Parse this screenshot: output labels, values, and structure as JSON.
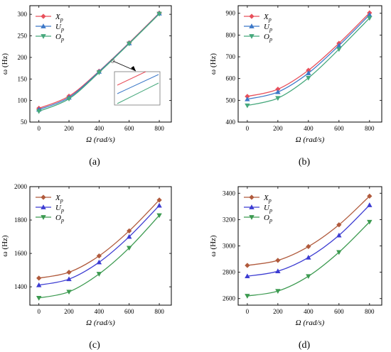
{
  "figure": {
    "panel_labels": [
      "(a)",
      "(b)",
      "(c)",
      "(d)"
    ]
  },
  "chart_data": [
    {
      "type": "line",
      "panel": "(a)",
      "xlabel": "Ω (rad/s)",
      "ylabel": "ω (Hz)",
      "x": [
        0,
        200,
        400,
        600,
        800
      ],
      "xticks": [
        0,
        200,
        400,
        600,
        800
      ],
      "yticks": [
        50,
        100,
        150,
        200,
        250,
        300
      ],
      "xlim": [
        -60,
        880
      ],
      "ylim": [
        50,
        320
      ],
      "legend": "top-left",
      "has_inset": true,
      "series": [
        {
          "name": "X",
          "sub": "p",
          "color": "#e8505b",
          "marker": "diamond",
          "values": [
            82,
            110,
            168,
            234,
            303
          ]
        },
        {
          "name": "U",
          "sub": "p",
          "color": "#3c78c8",
          "marker": "triangle-up",
          "values": [
            79,
            107,
            167,
            233,
            302
          ]
        },
        {
          "name": "O",
          "sub": "p",
          "color": "#46a87c",
          "marker": "triangle-down",
          "values": [
            75,
            104,
            165,
            232,
            301
          ]
        }
      ]
    },
    {
      "type": "line",
      "panel": "(b)",
      "xlabel": "Ω (rad/s)",
      "ylabel": "ω (Hz)",
      "x": [
        0,
        200,
        400,
        600,
        800
      ],
      "xticks": [
        0,
        200,
        400,
        600,
        800
      ],
      "yticks": [
        400,
        500,
        600,
        700,
        800,
        900
      ],
      "xlim": [
        -60,
        880
      ],
      "ylim": [
        400,
        935
      ],
      "legend": "top-left",
      "series": [
        {
          "name": "X",
          "sub": "p",
          "color": "#e8505b",
          "marker": "diamond",
          "values": [
            518,
            551,
            638,
            762,
            902
          ]
        },
        {
          "name": "U",
          "sub": "p",
          "color": "#3c78c8",
          "marker": "triangle-up",
          "values": [
            505,
            538,
            625,
            752,
            893
          ]
        },
        {
          "name": "O",
          "sub": "p",
          "color": "#46a87c",
          "marker": "triangle-down",
          "values": [
            476,
            510,
            603,
            735,
            878
          ]
        }
      ]
    },
    {
      "type": "line",
      "panel": "(c)",
      "xlabel": "Ω (rad/s)",
      "ylabel": "ω (Hz)",
      "x": [
        0,
        200,
        400,
        600,
        800
      ],
      "xticks": [
        0,
        200,
        400,
        600,
        800
      ],
      "yticks": [
        1400,
        1600,
        1800,
        2000
      ],
      "xlim": [
        -60,
        880
      ],
      "ylim": [
        1290,
        2000
      ],
      "legend": "top-left",
      "series": [
        {
          "name": "X",
          "sub": "p",
          "color": "#b05a3c",
          "marker": "diamond",
          "values": [
            1452,
            1487,
            1585,
            1735,
            1920
          ]
        },
        {
          "name": "U",
          "sub": "p",
          "color": "#3c3cd2",
          "marker": "triangle-up",
          "values": [
            1410,
            1446,
            1547,
            1700,
            1887
          ]
        },
        {
          "name": "O",
          "sub": "p",
          "color": "#3c9a50",
          "marker": "triangle-down",
          "values": [
            1333,
            1370,
            1477,
            1633,
            1828
          ]
        }
      ]
    },
    {
      "type": "line",
      "panel": "(d)",
      "xlabel": "Ω (rad/s)",
      "ylabel": "ω (Hz)",
      "x": [
        0,
        200,
        400,
        600,
        800
      ],
      "xticks": [
        0,
        200,
        400,
        600,
        800
      ],
      "yticks": [
        2600,
        2800,
        3000,
        3200,
        3400
      ],
      "xlim": [
        -60,
        880
      ],
      "ylim": [
        2550,
        3450
      ],
      "legend": "top-left",
      "series": [
        {
          "name": "X",
          "sub": "p",
          "color": "#b05a3c",
          "marker": "diamond",
          "values": [
            2852,
            2890,
            2995,
            3160,
            3378
          ]
        },
        {
          "name": "U",
          "sub": "p",
          "color": "#3c3cd2",
          "marker": "triangle-up",
          "values": [
            2770,
            2808,
            2912,
            3080,
            3310
          ]
        },
        {
          "name": "O",
          "sub": "p",
          "color": "#3c9a50",
          "marker": "triangle-down",
          "values": [
            2620,
            2657,
            2770,
            2952,
            3182
          ]
        }
      ]
    }
  ]
}
